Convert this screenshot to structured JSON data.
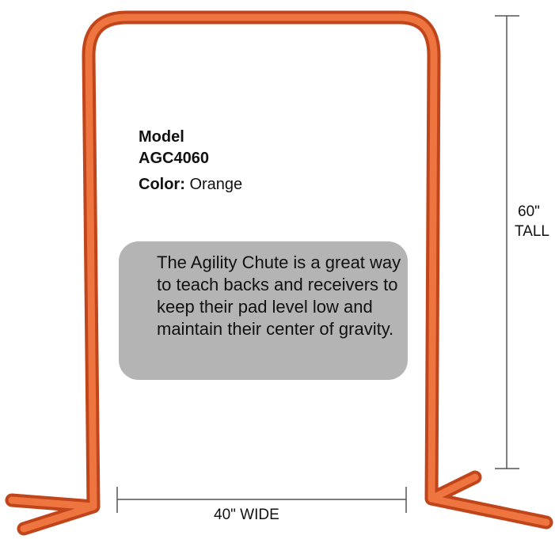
{
  "product": {
    "model_label": "Model",
    "model_number": "AGC4060",
    "color_label": "Color:",
    "color_value": "Orange",
    "description": "The Agility Chute is a great way to teach backs and receivers to keep their pad level low and maintain their center of gravity.",
    "height_value": "60\"",
    "height_label": "TALL",
    "width_label": "40\" WIDE"
  }
}
